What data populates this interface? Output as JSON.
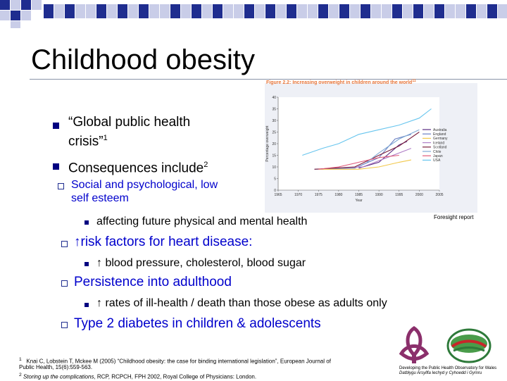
{
  "title": "Childhood obesity",
  "bullets": {
    "b1_line1": "“Global public health",
    "b1_line2": "crisis”",
    "b1_sup": "1",
    "b2": "Consequences include",
    "b2_sup": "2",
    "sub1_line1": "Social and psychological, low",
    "sub1_line2": "self esteem",
    "sub1_item": "affecting future physical and mental health",
    "sub2": "↑risk factors for heart disease:",
    "sub2_item": "↑ blood pressure, cholesterol, blood sugar",
    "sub3": "Persistence into adulthood",
    "sub3_item": "↑ rates of ill-health / death than those obese as adults only",
    "sub4": "Type 2 diabetes in children & adolescents"
  },
  "footnotes": {
    "f1_sup": "1",
    "f1_line1": "Knai C, Lobstein T, Mckee M (2005) “Childhood obesity: the case for binding international legislation”, European Journal of",
    "f1_line2": "Public Health, 15(6):559-563.",
    "f2_sup": "2",
    "f2_italic": "Storing up the complications",
    "f2_rest": ", RCP, RCPCH, FPH 2002, Royal College of Physicians: London."
  },
  "caption": "Foresight report",
  "logo_text": {
    "line1": "Developing the Public Health Observatory for Wales",
    "line2": "Datblygu Arsyllfa Iechyd y Cyhoedd i Gymru"
  },
  "colors": {
    "bullet": "#000080",
    "sub_text": "#0000cc",
    "figure_title": "#e8763a"
  },
  "chart_data": {
    "type": "line",
    "title": "Figure 2.2: Increasing overweight in children around the world",
    "title_sup": "11",
    "xlabel": "Year",
    "ylabel": "Percentage overweight",
    "xlim": [
      1965,
      2005
    ],
    "ylim": [
      0,
      40
    ],
    "x_ticks": [
      "1965",
      "1970",
      "1975",
      "1980",
      "1985",
      "1990",
      "1995",
      "2000",
      "2005"
    ],
    "y_ticks": [
      "0",
      "5",
      "10",
      "15",
      "20",
      "25",
      "30",
      "35",
      "40"
    ],
    "legend_position": "right",
    "series": [
      {
        "name": "Australia",
        "color": "#5a2a82",
        "points": [
          [
            1985,
            9.5
          ],
          [
            1990,
            12
          ],
          [
            1995,
            19.5
          ],
          [
            1997,
            21
          ]
        ]
      },
      {
        "name": "England",
        "color": "#6a7fc4",
        "points": [
          [
            1974,
            9
          ],
          [
            1984,
            9.5
          ],
          [
            1990,
            14
          ],
          [
            1994,
            22
          ],
          [
            1998,
            24
          ]
        ]
      },
      {
        "name": "Germany",
        "color": "#f2c84b",
        "points": [
          [
            1975,
            9
          ],
          [
            1985,
            9
          ],
          [
            1990,
            10
          ],
          [
            1995,
            12
          ],
          [
            1998,
            13
          ]
        ]
      },
      {
        "name": "Iceland",
        "color": "#b07fc7",
        "points": [
          [
            1978,
            9.5
          ],
          [
            1986,
            10
          ],
          [
            1992,
            14
          ],
          [
            1998,
            18
          ]
        ]
      },
      {
        "name": "Scotland",
        "color": "#7a1f3d",
        "points": [
          [
            1974,
            9
          ],
          [
            1984,
            10
          ],
          [
            1990,
            15
          ],
          [
            1995,
            19
          ],
          [
            2000,
            25
          ]
        ]
      },
      {
        "name": "Chile",
        "color": "#7fa9d4",
        "points": [
          [
            1987,
            12
          ],
          [
            1990,
            16
          ],
          [
            1995,
            22
          ],
          [
            2000,
            26
          ]
        ]
      },
      {
        "name": "Japan",
        "color": "#e05a7a",
        "points": [
          [
            1975,
            9
          ],
          [
            1980,
            10
          ],
          [
            1985,
            12
          ],
          [
            1990,
            14
          ],
          [
            1995,
            15
          ]
        ]
      },
      {
        "name": "USA",
        "color": "#67c5ee",
        "points": [
          [
            1971,
            15
          ],
          [
            1976,
            18
          ],
          [
            1980,
            20
          ],
          [
            1985,
            24
          ],
          [
            1990,
            26
          ],
          [
            1995,
            28
          ],
          [
            2000,
            31
          ],
          [
            2003,
            35
          ]
        ]
      }
    ]
  }
}
